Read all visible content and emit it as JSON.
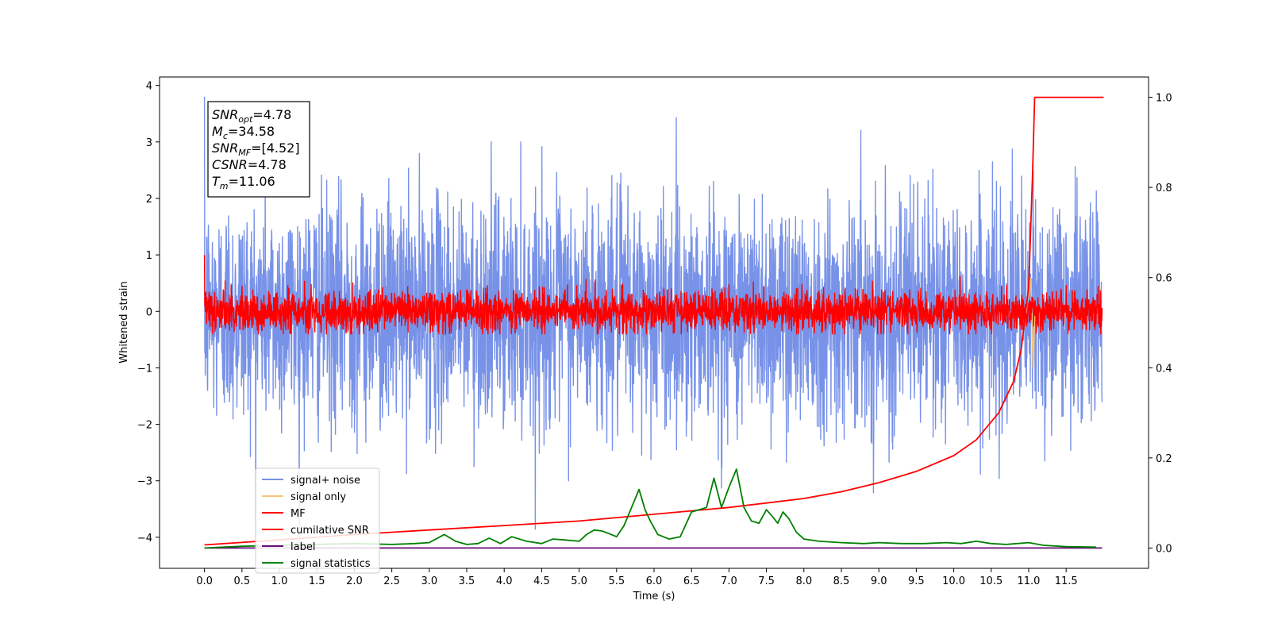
{
  "chart_data": {
    "type": "line",
    "xlabel": "Time (s)",
    "ylabel": "Whitened strain",
    "xlim": [
      -0.6,
      12.6
    ],
    "ylim": [
      -4.55,
      4.15
    ],
    "y2lim": [
      -0.045,
      1.045
    ],
    "x_ticks": [
      0.0,
      0.5,
      1.0,
      1.5,
      2.0,
      2.5,
      3.0,
      3.5,
      4.0,
      4.5,
      5.0,
      5.5,
      6.0,
      6.5,
      7.0,
      7.5,
      8.0,
      8.5,
      9.0,
      9.5,
      10.0,
      10.5,
      11.0,
      11.5
    ],
    "x_tick_labels": [
      "0.0",
      "0.5",
      "1.0",
      "1.5",
      "2.0",
      "2.5",
      "3.0",
      "3.5",
      "4.0",
      "4.5",
      "5.0",
      "5.5",
      "6.0",
      "6.5",
      "7.0",
      "7.5",
      "8.0",
      "8.5",
      "9.0",
      "9.5",
      "10.0",
      "10.5",
      "11.0",
      "11.5"
    ],
    "y_ticks": [
      -4,
      -3,
      -2,
      -1,
      0,
      1,
      2,
      3,
      4
    ],
    "y_tick_labels": [
      "−4",
      "−3",
      "−2",
      "−1",
      "0",
      "1",
      "2",
      "3",
      "4"
    ],
    "y2_ticks": [
      0.0,
      0.2,
      0.4,
      0.6,
      0.8,
      1.0
    ],
    "y2_tick_labels": [
      "0.0",
      "0.2",
      "0.4",
      "0.6",
      "0.8",
      "1.0"
    ],
    "annotation": {
      "lines": [
        {
          "name": "SNR",
          "sub": "opt",
          "value": "=4.78"
        },
        {
          "name": "M",
          "sub": "c",
          "value": "=34.58"
        },
        {
          "name": "SNR",
          "sub": "MF",
          "value": "=[4.52]"
        },
        {
          "name": "CSNR",
          "sub": "",
          "value": "=4.78"
        },
        {
          "name": "T",
          "sub": "m",
          "value": "=11.06"
        }
      ]
    },
    "series": [
      {
        "name": "signal+ noise",
        "color": "#7892e8",
        "axis": "left",
        "kind": "noise",
        "x_range": [
          0.0,
          11.98
        ],
        "std": 1.0,
        "min": -4.1,
        "max": 3.8
      },
      {
        "name": "signal only",
        "color": "#f5c77a",
        "axis": "left",
        "kind": "chirp",
        "merger_time": 11.06,
        "x": [
          10.95,
          11.0,
          11.03,
          11.06,
          11.08
        ],
        "y": [
          0.0,
          0.3,
          0.6,
          -1.0,
          0.0
        ]
      },
      {
        "name": "MF",
        "color": "#ff0000",
        "axis": "left",
        "kind": "noise",
        "x_range": [
          0.0,
          11.98
        ],
        "std": 0.18,
        "min": -0.4,
        "max": 1.0
      },
      {
        "name": "cumilative SNR",
        "color": "#ff0000",
        "axis": "right",
        "x": [
          0.0,
          1.0,
          2.0,
          3.0,
          4.0,
          5.0,
          6.0,
          7.0,
          7.5,
          8.0,
          8.5,
          9.0,
          9.5,
          10.0,
          10.3,
          10.6,
          10.8,
          10.9,
          11.0,
          11.05,
          11.08,
          12.0
        ],
        "y": [
          0.007,
          0.018,
          0.03,
          0.04,
          0.05,
          0.06,
          0.075,
          0.09,
          0.1,
          0.11,
          0.125,
          0.145,
          0.17,
          0.205,
          0.24,
          0.3,
          0.37,
          0.44,
          0.58,
          0.82,
          1.0,
          1.0
        ]
      },
      {
        "name": "label",
        "color": "#6a0a7a",
        "axis": "right",
        "x": [
          0.0,
          11.98
        ],
        "y": [
          0.0,
          0.0
        ]
      },
      {
        "name": "signal statistics",
        "color": "#008000",
        "axis": "right",
        "x": [
          0.0,
          0.5,
          1.0,
          1.5,
          2.0,
          2.5,
          2.8,
          3.0,
          3.2,
          3.35,
          3.5,
          3.65,
          3.8,
          3.95,
          4.1,
          4.3,
          4.5,
          4.65,
          4.8,
          5.0,
          5.1,
          5.2,
          5.3,
          5.4,
          5.5,
          5.6,
          5.7,
          5.8,
          5.88,
          5.95,
          6.05,
          6.2,
          6.35,
          6.5,
          6.6,
          6.7,
          6.8,
          6.9,
          7.0,
          7.1,
          7.2,
          7.3,
          7.4,
          7.5,
          7.58,
          7.65,
          7.72,
          7.8,
          7.9,
          8.0,
          8.2,
          8.5,
          8.8,
          9.0,
          9.3,
          9.6,
          9.9,
          10.1,
          10.3,
          10.5,
          10.7,
          11.0,
          11.2,
          11.5,
          11.9
        ],
        "y": [
          0.0,
          0.004,
          0.006,
          0.008,
          0.01,
          0.008,
          0.01,
          0.012,
          0.03,
          0.015,
          0.008,
          0.01,
          0.022,
          0.01,
          0.025,
          0.015,
          0.01,
          0.02,
          0.018,
          0.015,
          0.03,
          0.04,
          0.038,
          0.032,
          0.025,
          0.05,
          0.09,
          0.13,
          0.085,
          0.06,
          0.03,
          0.02,
          0.025,
          0.08,
          0.085,
          0.09,
          0.155,
          0.09,
          0.135,
          0.175,
          0.09,
          0.06,
          0.055,
          0.085,
          0.07,
          0.055,
          0.08,
          0.065,
          0.035,
          0.02,
          0.015,
          0.012,
          0.01,
          0.012,
          0.01,
          0.01,
          0.012,
          0.01,
          0.015,
          0.01,
          0.008,
          0.012,
          0.006,
          0.003,
          0.002
        ]
      }
    ],
    "legend": {
      "placement": "lower-left",
      "entries": [
        {
          "label": "signal+ noise",
          "color": "#7892e8"
        },
        {
          "label": "signal only",
          "color": "#f5c77a"
        },
        {
          "label": "MF",
          "color": "#ff0000"
        },
        {
          "label": "cumilative SNR",
          "color": "#ff0000"
        },
        {
          "label": "label",
          "color": "#6a0a7a"
        },
        {
          "label": "signal statistics",
          "color": "#008000"
        }
      ]
    },
    "grid": false
  }
}
